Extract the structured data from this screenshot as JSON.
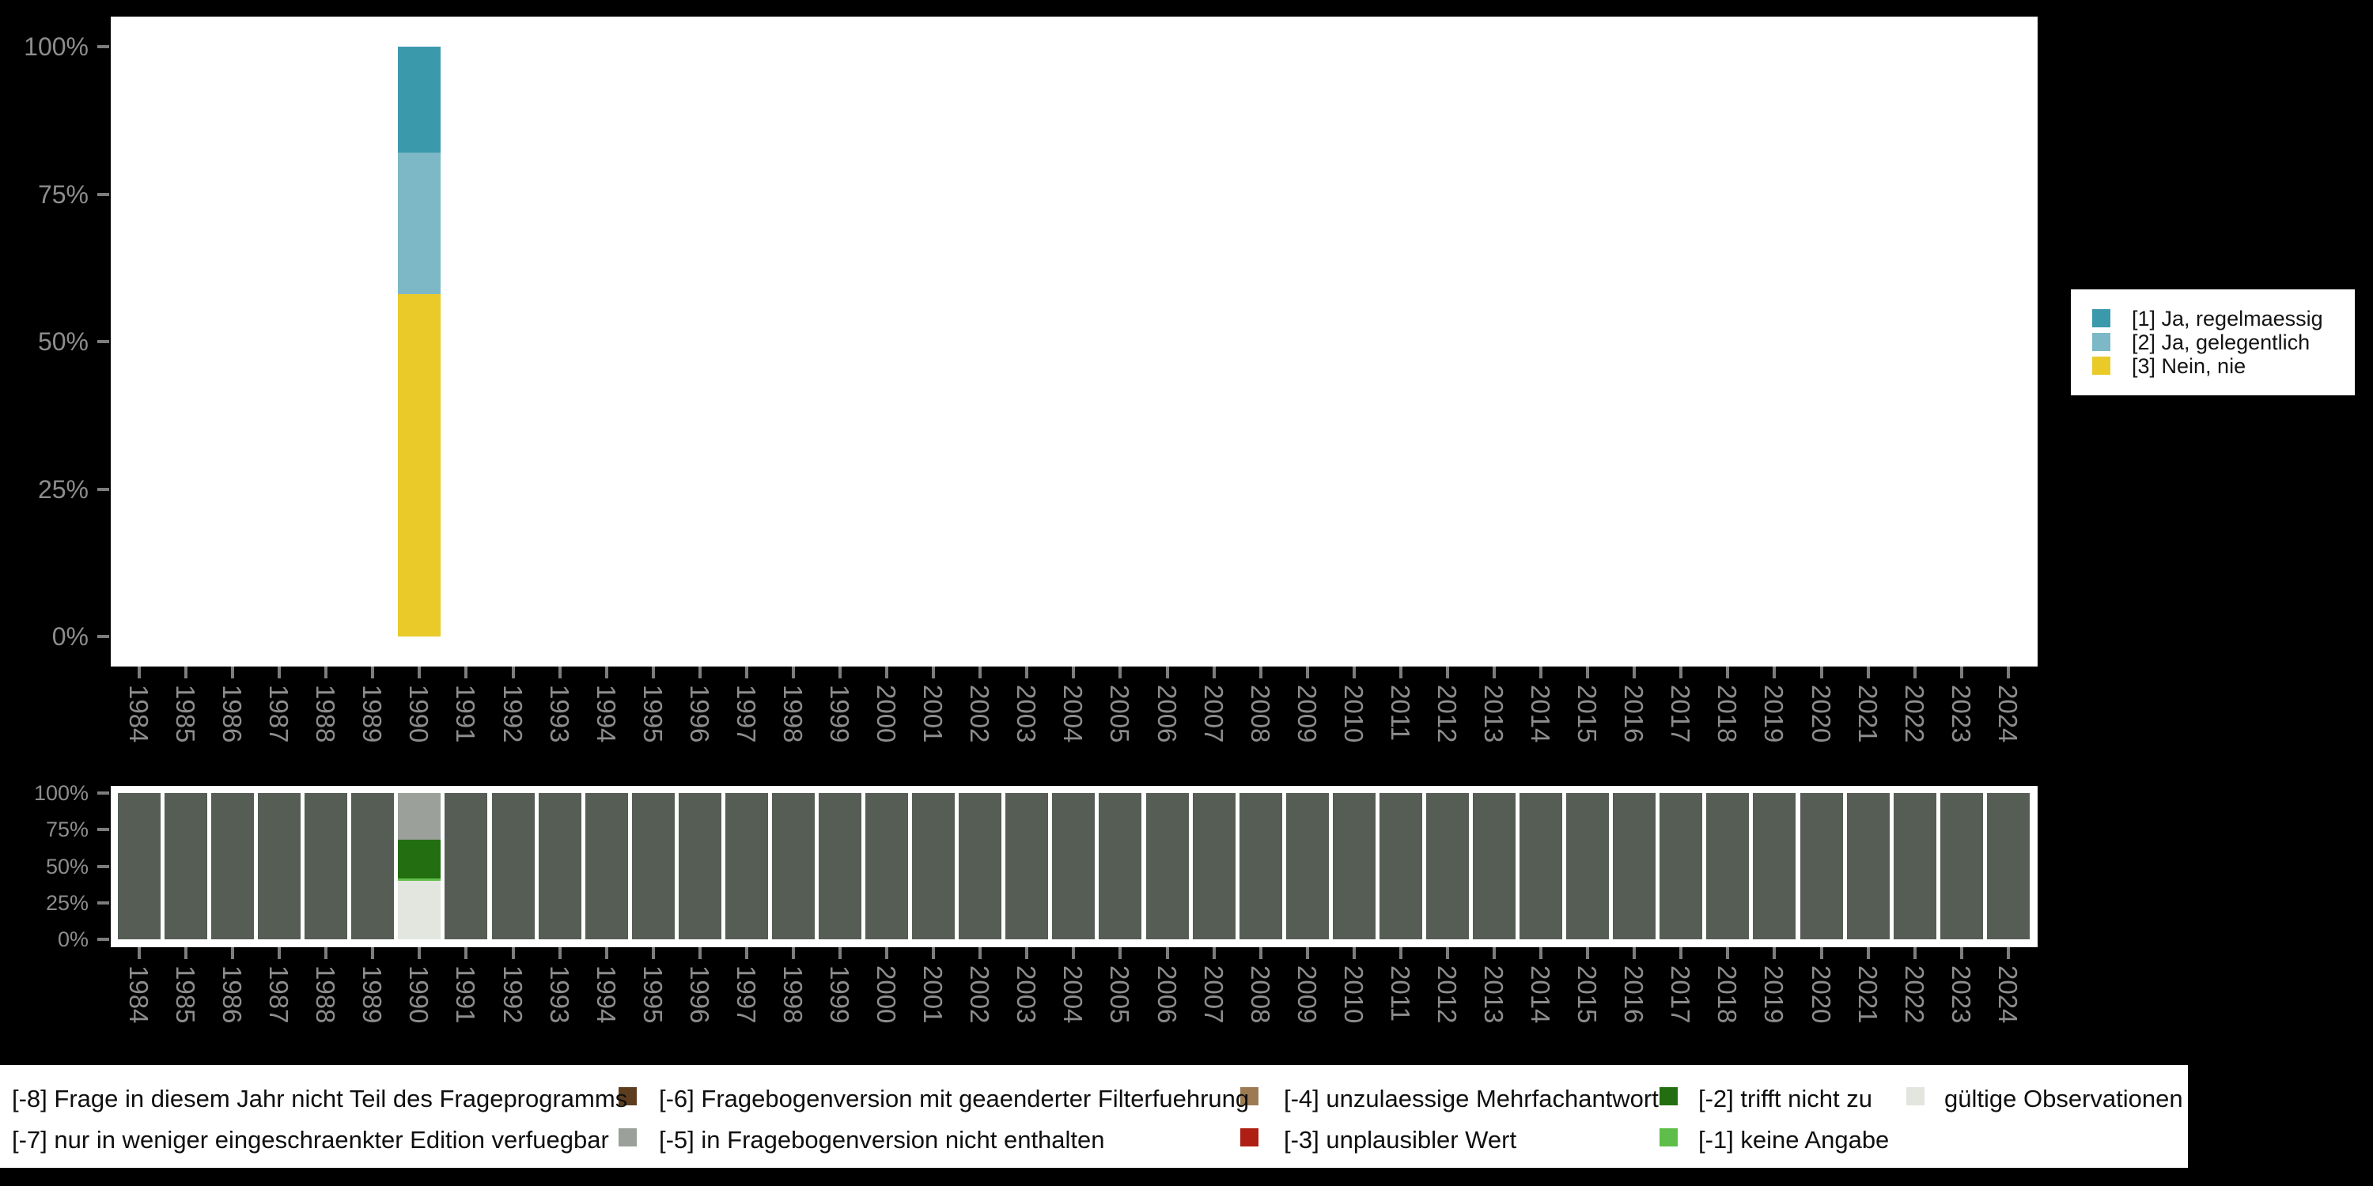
{
  "figure": {
    "background_color": "#000000",
    "plot_background_color": "#ffffff",
    "axis_text_color": "#8d8d8d"
  },
  "chart_data": [
    {
      "id": "values",
      "type": "bar",
      "stacked": true,
      "unit": "percent",
      "grid": false,
      "legend_position": "right",
      "ylim": [
        0,
        100
      ],
      "y_ticks": [
        "0%",
        "25%",
        "50%",
        "75%",
        "100%"
      ],
      "x_years": [
        "1984",
        "1985",
        "1986",
        "1987",
        "1988",
        "1989",
        "1990",
        "1991",
        "1992",
        "1993",
        "1994",
        "1995",
        "1996",
        "1997",
        "1998",
        "1999",
        "2000",
        "2001",
        "2002",
        "2003",
        "2004",
        "2005",
        "2006",
        "2007",
        "2008",
        "2009",
        "2010",
        "2011",
        "2012",
        "2013",
        "2014",
        "2015",
        "2016",
        "2017",
        "2018",
        "2019",
        "2020",
        "2021",
        "2022",
        "2023",
        "2024"
      ],
      "default_segments": [],
      "bars": [
        {
          "year": "1990",
          "segments": [
            {
              "label": "[3] Nein, nie",
              "value": 58,
              "color": "#e9ca28"
            },
            {
              "label": "[2] Ja, gelegentlich",
              "value": 24,
              "color": "#7cb8c6"
            },
            {
              "label": "[1] Ja, regelmaessig",
              "value": 18,
              "color": "#3b99ac"
            }
          ]
        }
      ]
    },
    {
      "id": "missings",
      "type": "bar",
      "stacked": true,
      "unit": "percent",
      "grid": false,
      "legend_position": "bottom",
      "ylim": [
        0,
        100
      ],
      "y_ticks": [
        "0%",
        "25%",
        "50%",
        "75%",
        "100%"
      ],
      "x_years": [
        "1984",
        "1985",
        "1986",
        "1987",
        "1988",
        "1989",
        "1990",
        "1991",
        "1992",
        "1993",
        "1994",
        "1995",
        "1996",
        "1997",
        "1998",
        "1999",
        "2000",
        "2001",
        "2002",
        "2003",
        "2004",
        "2005",
        "2006",
        "2007",
        "2008",
        "2009",
        "2010",
        "2011",
        "2012",
        "2013",
        "2014",
        "2015",
        "2016",
        "2017",
        "2018",
        "2019",
        "2020",
        "2021",
        "2022",
        "2023",
        "2024"
      ],
      "default_segments": [
        {
          "label": "[-8] Frage in diesem Jahr nicht Teil des Frageprogramms",
          "value": 100,
          "color": "#555d54"
        }
      ],
      "bars": [
        {
          "year": "1990",
          "segments": [
            {
              "label": "gültige Observationen",
              "value": 40,
              "color": "#e2e6df"
            },
            {
              "label": "[-1] keine Angabe",
              "value": 1.5,
              "color": "#5fbe49"
            },
            {
              "label": "[-2] trifft nicht zu",
              "value": 26.5,
              "color": "#226e10"
            },
            {
              "label": "[-5] in Fragebogenversion nicht enthalten",
              "value": 32,
              "color": "#9ba09a"
            }
          ]
        }
      ]
    }
  ],
  "top_legend": {
    "items": [
      {
        "label": "[1] Ja, regelmaessig",
        "color": "#3b99ac"
      },
      {
        "label": "[2] Ja, gelegentlich",
        "color": "#7cb8c6"
      },
      {
        "label": "[3] Nein, nie",
        "color": "#e9ca28"
      }
    ]
  },
  "bottom_legend": {
    "items": [
      {
        "row": 1,
        "col": 1,
        "label": "[-8] Frage in diesem Jahr nicht Teil des Frageprogramms",
        "color": null
      },
      {
        "row": 2,
        "col": 1,
        "label": "[-7] nur in weniger eingeschraenkter Edition verfuegbar",
        "color": null
      },
      {
        "row": 1,
        "col": 2,
        "label": "[-6] Fragebogenversion mit geaenderter Filterfuehrung",
        "color": "#5e3d1e"
      },
      {
        "row": 2,
        "col": 2,
        "label": "[-5] in Fragebogenversion nicht enthalten",
        "color": "#9ba09a"
      },
      {
        "row": 1,
        "col": 3,
        "label": "[-4] unzulaessige Mehrfachantwort",
        "color": "#9c7b53"
      },
      {
        "row": 2,
        "col": 3,
        "label": "[-3] unplausibler Wert",
        "color": "#ae1e13"
      },
      {
        "row": 1,
        "col": 4,
        "label": "[-2] trifft nicht zu",
        "color": "#226e10"
      },
      {
        "row": 2,
        "col": 4,
        "label": "[-1] keine Angabe",
        "color": "#5fbe49"
      },
      {
        "row": 1,
        "col": 5,
        "label": "gültige Observationen",
        "color": "#e2e6df"
      }
    ]
  }
}
